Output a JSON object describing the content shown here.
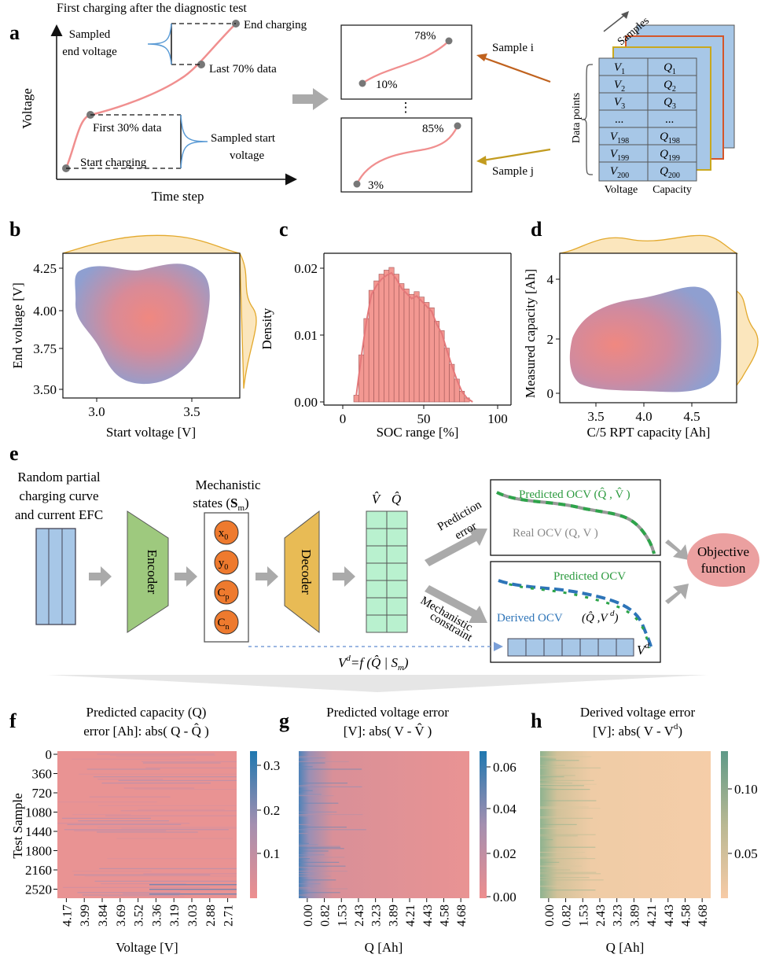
{
  "panel_labels": {
    "a": "a",
    "b": "b",
    "c": "c",
    "d": "d",
    "e": "e",
    "f": "f",
    "g": "g",
    "h": "h"
  },
  "panel_a": {
    "title": "First charging after the diagnostic test",
    "ylabel": "Voltage",
    "xlabel": "Time step",
    "sampled_end_voltage": [
      "Sampled",
      "end voltage"
    ],
    "end_charging": "End charging",
    "last_70": "Last 70% data",
    "first_30": "First 30% data",
    "sampled_start_voltage": [
      "Sampled start",
      "voltage"
    ],
    "start_charging": "Start charging",
    "sample_i": {
      "start": "10%",
      "end": "78%",
      "label": "Sample i"
    },
    "sample_j": {
      "start": "3%",
      "end": "85%",
      "label": "Sample j"
    },
    "ellipsis": "⋮",
    "stack": {
      "samples_label": "Samples",
      "datapoints_label": "Data points",
      "voltage_label": "Voltage",
      "capacity_label": "Capacity",
      "rows": [
        [
          "V",
          "1",
          "Q",
          "1"
        ],
        [
          "V",
          "2",
          "Q",
          "2"
        ],
        [
          "V",
          "3",
          "Q",
          "3"
        ],
        [
          "...",
          "",
          "...",
          ""
        ],
        [
          "V",
          "198",
          "Q",
          "198"
        ],
        [
          "V",
          "199",
          "Q",
          "199"
        ],
        [
          "V",
          "200",
          "Q",
          "200"
        ]
      ]
    }
  },
  "panel_b": {
    "xlabel": "Start voltage [V]",
    "ylabel": "End voltage [V]",
    "xticks": [
      "3.0",
      "3.5"
    ],
    "yticks": [
      "4.25",
      "4.00",
      "3.75",
      "3.50"
    ]
  },
  "panel_c": {
    "xlabel": "SOC range [%]",
    "ylabel": "Density",
    "xticks": [
      "0",
      "50",
      "100"
    ],
    "yticks": [
      "0.02",
      "0.01",
      "0.00"
    ]
  },
  "panel_d": {
    "xlabel": "C/5 RPT capacity [Ah]",
    "ylabel": "Measured capacity [Ah]",
    "xticks": [
      "3.5",
      "4.0",
      "4.5"
    ],
    "yticks": [
      "4",
      "2",
      "0"
    ]
  },
  "panel_e": {
    "input_label": [
      "Random partial",
      "charging curve",
      "and current EFC"
    ],
    "encoder": "Encoder",
    "decoder": "Decoder",
    "mech_label": [
      "Mechanistic",
      "states ("
    ],
    "mech_s": "S",
    "mech_sub": "m",
    "states": [
      [
        "x",
        "0"
      ],
      [
        "y",
        "0"
      ],
      [
        "C",
        "p"
      ],
      [
        "C",
        "n"
      ]
    ],
    "vhat": "V̂",
    "qhat": "Q̂",
    "prediction_error": [
      "Prediction",
      "error"
    ],
    "mechanistic_constraint": [
      "Mechanistic",
      "constraint"
    ],
    "predicted_ocv_qv": "Predicted OCV (Q̂ , V̂ )",
    "real_ocv": "Real OCV (Q, V )",
    "predicted_ocv": "Predicted OCV",
    "derived_ocv": "Derived OCV",
    "derived_args": "(Q̂ ,V ",
    "vd_label": "V",
    "vd_sup": "d",
    "formula": "=f (Q̂ | S",
    "objective": [
      "Objective",
      "function"
    ]
  },
  "panel_f": {
    "title": [
      "Predicted capacity (Q)",
      "error [Ah]: abs( Q - Q̂ )"
    ],
    "ylabel": "Test Sample",
    "xlabel": "Voltage [V]",
    "yticks": [
      "0",
      "360",
      "720",
      "1080",
      "1440",
      "1800",
      "2160",
      "2520"
    ],
    "xticks": [
      "4.17",
      "3.99",
      "3.84",
      "3.69",
      "3.52",
      "3.36",
      "3.19",
      "3.03",
      "2.88",
      "2.71"
    ],
    "cbar": [
      "0.3",
      "0.2",
      "0.1"
    ]
  },
  "panel_g": {
    "title": [
      "Predicted voltage error",
      "[V]: abs( V - V̂ )"
    ],
    "xlabel": "Q [Ah]",
    "xticks": [
      "0.00",
      "0.82",
      "1.53",
      "2.43",
      "3.23",
      "3.89",
      "4.21",
      "4.43",
      "4.58",
      "4.68"
    ],
    "cbar": [
      "0.06",
      "0.04",
      "0.02",
      "0.00"
    ]
  },
  "panel_h": {
    "title": [
      "Derived voltage error",
      "[V]: abs( V -  V d)"
    ],
    "xlabel": "Q [Ah]",
    "xticks": [
      "0.00",
      "0.82",
      "1.53",
      "2.43",
      "3.23",
      "3.89",
      "4.21",
      "4.43",
      "4.58",
      "4.68"
    ],
    "cbar": [
      "0.10",
      "0.05"
    ]
  },
  "colors": {
    "kde_blue": "#8f9fd0",
    "kde_red": "#ee8680",
    "hist": "#f39892",
    "marginal": "#e9b23a",
    "cell_blue": "#a7c7e7",
    "green_grid": "#b9f1cf"
  }
}
